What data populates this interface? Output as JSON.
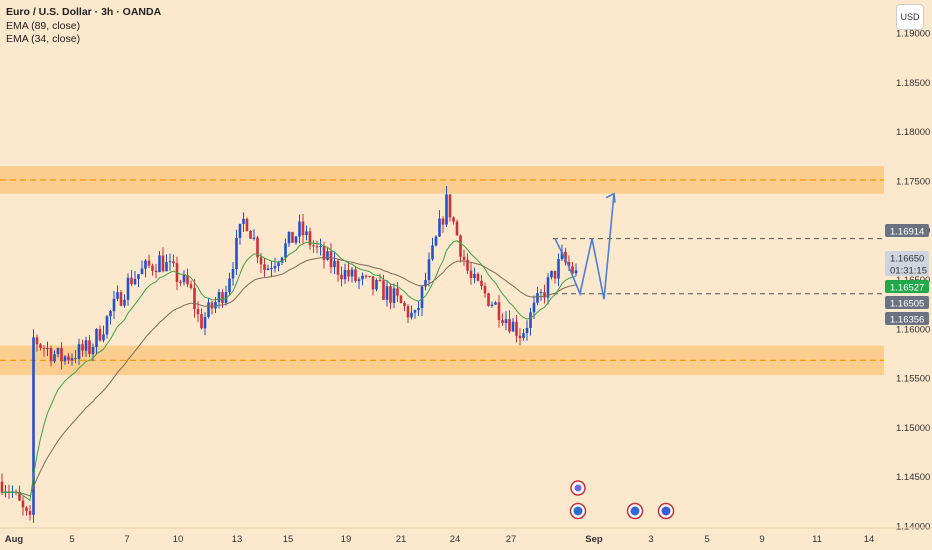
{
  "header": {
    "title": "Euro / U.S. Dollar · 3h · OANDA",
    "indicators": [
      "EMA (89, close)",
      "EMA (34, close)"
    ],
    "currency_button": "USD"
  },
  "colors": {
    "background": "#fce8cd",
    "zone": "#fbc67a",
    "zone_line": "#f59e0b",
    "up_candle": "#2352c8",
    "down_candle": "#c8323c",
    "ema89": "#7b6c58",
    "ema34": "#3ea046",
    "projection": "#4a7fd8",
    "price_green": "#22a74a",
    "price_gray": "#6b7280",
    "price_light": "#cfd5df"
  },
  "chart_data": {
    "type": "candlestick",
    "symbol": "Euro / U.S. Dollar",
    "timeframe": "3h",
    "source": "OANDA",
    "y_range": [
      1.1398,
      1.1902
    ],
    "y_ticks": [
      "1.19000",
      "1.18500",
      "1.18000",
      "1.17500",
      "1.17000",
      "1.16500",
      "1.16000",
      "1.15500",
      "1.15000",
      "1.14500",
      "1.14000"
    ],
    "x_ticks": [
      "Aug",
      "5",
      "7",
      "10",
      "13",
      "15",
      "19",
      "21",
      "24",
      "27",
      "Sep",
      "3",
      "5",
      "9",
      "11",
      "14"
    ],
    "price_labels": [
      {
        "value": "1.16914",
        "style": "gray"
      },
      {
        "value": "1.16650",
        "style": "light"
      },
      {
        "value": "01:31:15",
        "style": "light"
      },
      {
        "value": "1.16527",
        "style": "green"
      },
      {
        "value": "1.16505",
        "style": "gray"
      },
      {
        "value": "1.16356",
        "style": "gray"
      }
    ],
    "zones": [
      {
        "name": "resistance",
        "from": 1.1737,
        "to": 1.1765,
        "line": 1.1751
      },
      {
        "name": "support",
        "from": 1.1553,
        "to": 1.1583,
        "line": 1.1568
      }
    ],
    "levels": [
      1.16914,
      1.16356
    ],
    "series": [
      {
        "name": "EMA (89, close)"
      },
      {
        "name": "EMA (34, close)"
      }
    ],
    "ohlc_keypoints": [
      {
        "x": "Aug 1",
        "close": 1.1445
      },
      {
        "x": "Aug 1",
        "close": 1.1435
      },
      {
        "x": "Aug 1",
        "close": 1.1402
      },
      {
        "x": "Aug 1",
        "close": 1.159
      },
      {
        "x": "Aug 4",
        "close": 1.157
      },
      {
        "x": "Aug 5",
        "close": 1.158
      },
      {
        "x": "Aug 6",
        "close": 1.165
      },
      {
        "x": "Aug 7",
        "close": 1.167
      },
      {
        "x": "Aug 8",
        "close": 1.164
      },
      {
        "x": "Aug 11",
        "close": 1.1605
      },
      {
        "x": "Aug 12",
        "close": 1.164
      },
      {
        "x": "Aug 13",
        "close": 1.1715
      },
      {
        "x": "Aug 14",
        "close": 1.166
      },
      {
        "x": "Aug 15",
        "close": 1.17
      },
      {
        "x": "Aug 18",
        "close": 1.167
      },
      {
        "x": "Aug 19",
        "close": 1.165
      },
      {
        "x": "Aug 20",
        "close": 1.1635
      },
      {
        "x": "Aug 21",
        "close": 1.161
      },
      {
        "x": "Aug 22",
        "close": 1.173
      },
      {
        "x": "Aug 25",
        "close": 1.165
      },
      {
        "x": "Aug 26",
        "close": 1.163
      },
      {
        "x": "Aug 27",
        "close": 1.1595
      },
      {
        "x": "Aug 28",
        "close": 1.164
      },
      {
        "x": "Aug 29",
        "close": 1.167
      },
      {
        "x": "Aug 29",
        "close": 1.16527
      }
    ],
    "projection": [
      1.16914,
      1.1665,
      1.16356,
      1.16914,
      1.163,
      1.1737
    ],
    "events": [
      {
        "x": "Aug 29"
      },
      {
        "x": "Sep 2"
      },
      {
        "x": "Sep 3"
      }
    ]
  }
}
